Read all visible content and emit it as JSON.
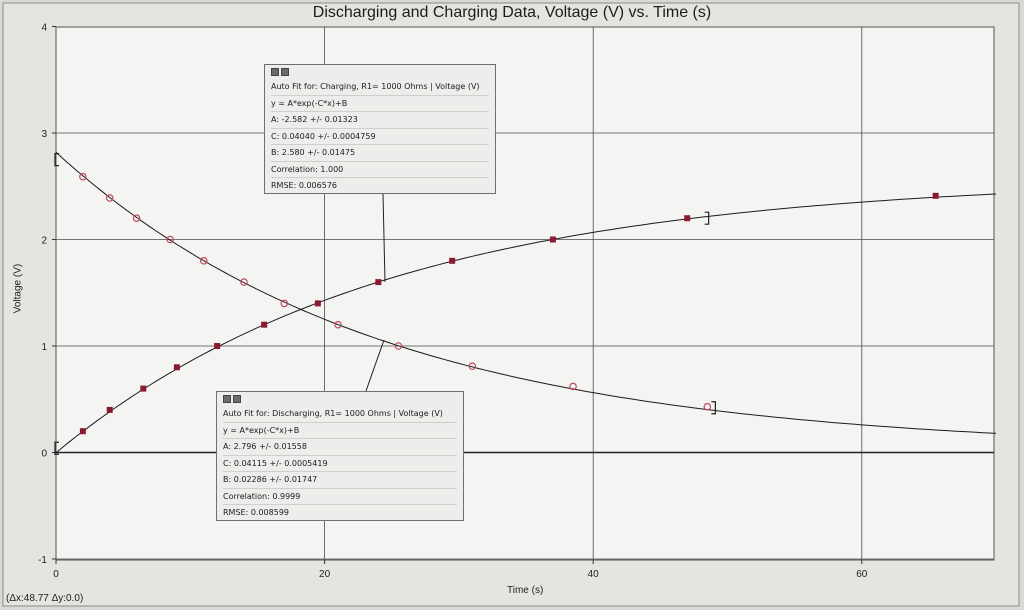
{
  "chart_data": {
    "type": "scatter",
    "title": "Discharging and Charging Data, Voltage (V) vs. Time (s)",
    "xlabel": "Time (s)",
    "ylabel": "Voltage (V)",
    "xlim": [
      0,
      70
    ],
    "ylim": [
      -1,
      4
    ],
    "xticks": [
      0,
      20,
      40,
      60
    ],
    "yticks": [
      -1,
      0,
      1,
      2,
      3,
      4
    ],
    "grid": true,
    "series": [
      {
        "name": "Discharging",
        "marker": "open-circle",
        "color": "#c0495e",
        "x": [
          2,
          4,
          6,
          8.5,
          11,
          14,
          17,
          21,
          25.5,
          31,
          38.5,
          48.5
        ],
        "y": [
          2.59,
          2.39,
          2.2,
          2.0,
          1.8,
          1.6,
          1.4,
          1.2,
          1.0,
          0.81,
          0.62,
          0.43
        ]
      },
      {
        "name": "Charging",
        "marker": "filled-square",
        "color": "#8a1a2e",
        "x": [
          2,
          4,
          6.5,
          9,
          12,
          15.5,
          19.5,
          24,
          29.5,
          37,
          47,
          65.5
        ],
        "y": [
          0.2,
          0.4,
          0.6,
          0.8,
          1.0,
          1.2,
          1.4,
          1.6,
          1.8,
          2.0,
          2.2,
          2.41
        ]
      }
    ],
    "fits": {
      "discharging": {
        "A": 2.796,
        "C": 0.04115,
        "B": 0.02286
      },
      "charging": {
        "A": -2.582,
        "C": 0.0404,
        "B": 2.58
      }
    }
  },
  "fit_charging": {
    "lines": [
      "Auto Fit for: Charging, R1= 1000 Ohms | Voltage (V)",
      "y = A*exp(-C*x)+B",
      "A: -2.582 +/- 0.01323",
      "C: 0.04040 +/- 0.0004759",
      "B: 2.580 +/- 0.01475",
      "Correlation: 1.000",
      "RMSE: 0.006576"
    ]
  },
  "fit_discharging": {
    "lines": [
      "Auto Fit for: Discharging, R1= 1000 Ohms | Voltage (V)",
      "y = A*exp(-C*x)+B",
      "A: 2.796 +/- 0.01558",
      "C: 0.04115 +/- 0.0005419",
      "B: 0.02286 +/- 0.01747",
      "Correlation: 0.9999",
      "RMSE: 0.008599"
    ]
  },
  "readout": "(Δx:48.77 Δy:0.0)"
}
